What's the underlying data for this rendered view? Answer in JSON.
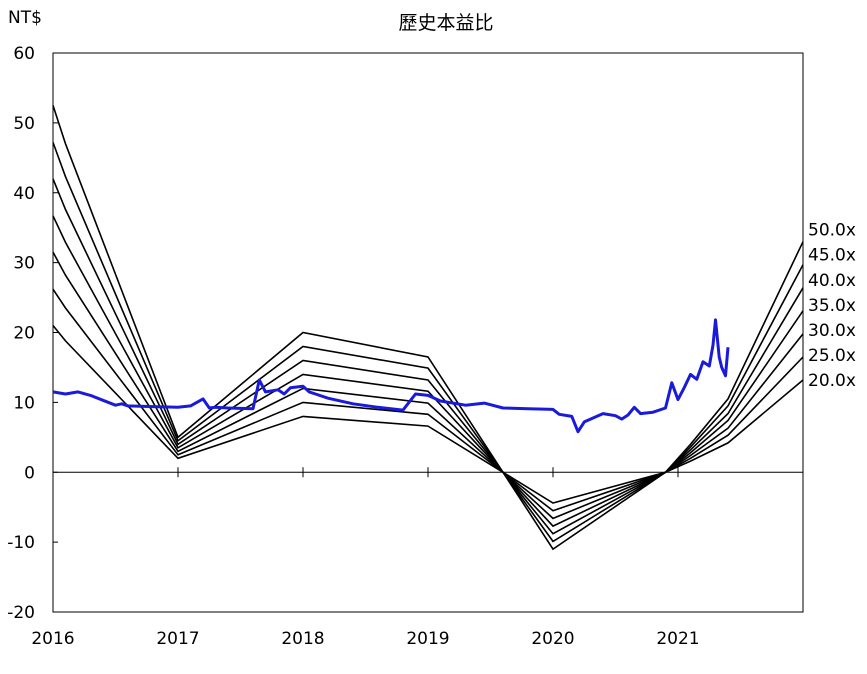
{
  "chart_data": {
    "type": "line",
    "title": "歷史本益比",
    "ylabel": "NT$",
    "xlabel": "",
    "ylim": [
      -20,
      60
    ],
    "xlim": [
      2016,
      2022
    ],
    "yticks": [
      "60",
      "50",
      "40",
      "30",
      "20",
      "10",
      "0",
      "-10",
      "-20"
    ],
    "xticks": [
      "2016",
      "2017",
      "2018",
      "2019",
      "2020",
      "2021"
    ],
    "grid": false,
    "colors": {
      "price": "#1a1adb",
      "bands": "#000000"
    },
    "pe_bands": [
      {
        "label": "50.0x",
        "x": [
          2016.0,
          2016.1,
          2017.0,
          2018.0,
          2019.0,
          2019.6,
          2020.0,
          2020.9,
          2021.1,
          2021.4,
          2022.0
        ],
        "y": [
          52.5,
          47.0,
          5.0,
          20.0,
          16.5,
          0.0,
          -11.0,
          0.0,
          4.0,
          10.5,
          33.0
        ]
      },
      {
        "label": "45.0x",
        "x": [
          2016.0,
          2016.1,
          2017.0,
          2018.0,
          2019.0,
          2019.6,
          2020.0,
          2020.9,
          2021.1,
          2021.4,
          2022.0
        ],
        "y": [
          47.2,
          42.3,
          4.5,
          18.0,
          14.9,
          0.0,
          -9.9,
          0.0,
          3.6,
          9.5,
          29.7
        ]
      },
      {
        "label": "40.0x",
        "x": [
          2016.0,
          2016.1,
          2017.0,
          2018.0,
          2019.0,
          2019.6,
          2020.0,
          2020.9,
          2021.1,
          2021.4,
          2022.0
        ],
        "y": [
          42.0,
          37.6,
          4.0,
          16.0,
          13.2,
          0.0,
          -8.8,
          0.0,
          3.2,
          8.4,
          26.4
        ]
      },
      {
        "label": "35.0x",
        "x": [
          2016.0,
          2016.1,
          2017.0,
          2018.0,
          2019.0,
          2019.6,
          2020.0,
          2020.9,
          2021.1,
          2021.4,
          2022.0
        ],
        "y": [
          36.7,
          32.9,
          3.5,
          14.0,
          11.6,
          0.0,
          -7.7,
          0.0,
          2.8,
          7.4,
          23.1
        ]
      },
      {
        "label": "30.0x",
        "x": [
          2016.0,
          2016.1,
          2017.0,
          2018.0,
          2019.0,
          2019.6,
          2020.0,
          2020.9,
          2021.1,
          2021.4,
          2022.0
        ],
        "y": [
          31.5,
          28.2,
          3.0,
          12.0,
          9.9,
          0.0,
          -6.6,
          0.0,
          2.4,
          6.3,
          19.8
        ]
      },
      {
        "label": "25.0x",
        "x": [
          2016.0,
          2016.1,
          2017.0,
          2018.0,
          2019.0,
          2019.6,
          2020.0,
          2020.9,
          2021.1,
          2021.4,
          2022.0
        ],
        "y": [
          26.2,
          23.5,
          2.5,
          10.0,
          8.3,
          0.0,
          -5.5,
          0.0,
          2.0,
          5.3,
          16.5
        ]
      },
      {
        "label": "20.0x",
        "x": [
          2016.0,
          2016.1,
          2017.0,
          2018.0,
          2019.0,
          2019.6,
          2020.0,
          2020.9,
          2021.1,
          2021.4,
          2022.0
        ],
        "y": [
          21.0,
          18.8,
          2.0,
          8.0,
          6.6,
          0.0,
          -4.4,
          0.0,
          1.6,
          4.2,
          13.2
        ]
      }
    ],
    "price_series": {
      "x": [
        2016.0,
        2016.1,
        2016.2,
        2016.3,
        2016.4,
        2016.5,
        2016.55,
        2016.6,
        2016.8,
        2017.0,
        2017.1,
        2017.2,
        2017.25,
        2017.3,
        2017.4,
        2017.6,
        2017.65,
        2017.7,
        2017.8,
        2017.85,
        2017.9,
        2018.0,
        2018.05,
        2018.1,
        2018.2,
        2018.4,
        2018.6,
        2018.8,
        2018.9,
        2019.0,
        2019.1,
        2019.3,
        2019.45,
        2019.6,
        2019.8,
        2020.0,
        2020.05,
        2020.15,
        2020.2,
        2020.25,
        2020.3,
        2020.4,
        2020.5,
        2020.55,
        2020.6,
        2020.65,
        2020.7,
        2020.8,
        2020.9,
        2020.95,
        2021.0,
        2021.05,
        2021.1,
        2021.15,
        2021.2,
        2021.25,
        2021.28,
        2021.3,
        2021.33,
        2021.35,
        2021.38,
        2021.4
      ],
      "y": [
        11.5,
        11.2,
        11.5,
        11.0,
        10.3,
        9.6,
        9.8,
        9.5,
        9.4,
        9.3,
        9.5,
        10.5,
        9.2,
        9.3,
        9.2,
        9.1,
        13.2,
        11.5,
        11.8,
        11.2,
        12.1,
        12.3,
        11.5,
        11.2,
        10.6,
        9.8,
        9.3,
        8.9,
        11.2,
        11.0,
        10.2,
        9.6,
        9.9,
        9.2,
        9.1,
        9.0,
        8.3,
        8.0,
        5.8,
        7.2,
        7.6,
        8.4,
        8.1,
        7.6,
        8.2,
        9.3,
        8.4,
        8.6,
        9.2,
        12.8,
        10.4,
        12.1,
        14.0,
        13.3,
        15.8,
        15.2,
        18.2,
        21.8,
        16.5,
        15.0,
        13.8,
        17.9
      ]
    }
  }
}
